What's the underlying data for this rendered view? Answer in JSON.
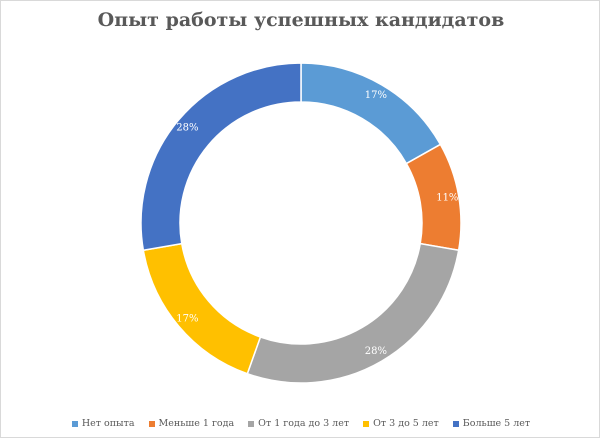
{
  "chart_data": {
    "type": "pie",
    "donut": true,
    "title": "Опыт работы успешных кандидатов",
    "categories": [
      "Нет опыта",
      "Меньше 1 года",
      "От 1 года до 3 лет",
      "От 3 до 5 лет",
      "Больше 5 лет"
    ],
    "values": [
      17,
      11,
      28,
      17,
      28
    ],
    "labels": [
      "17%",
      "11%",
      "28%",
      "17%",
      "28%"
    ],
    "colors": [
      "#5b9bd5",
      "#ed7d31",
      "#a5a5a5",
      "#ffc000",
      "#4472c4"
    ],
    "legend_position": "bottom"
  }
}
